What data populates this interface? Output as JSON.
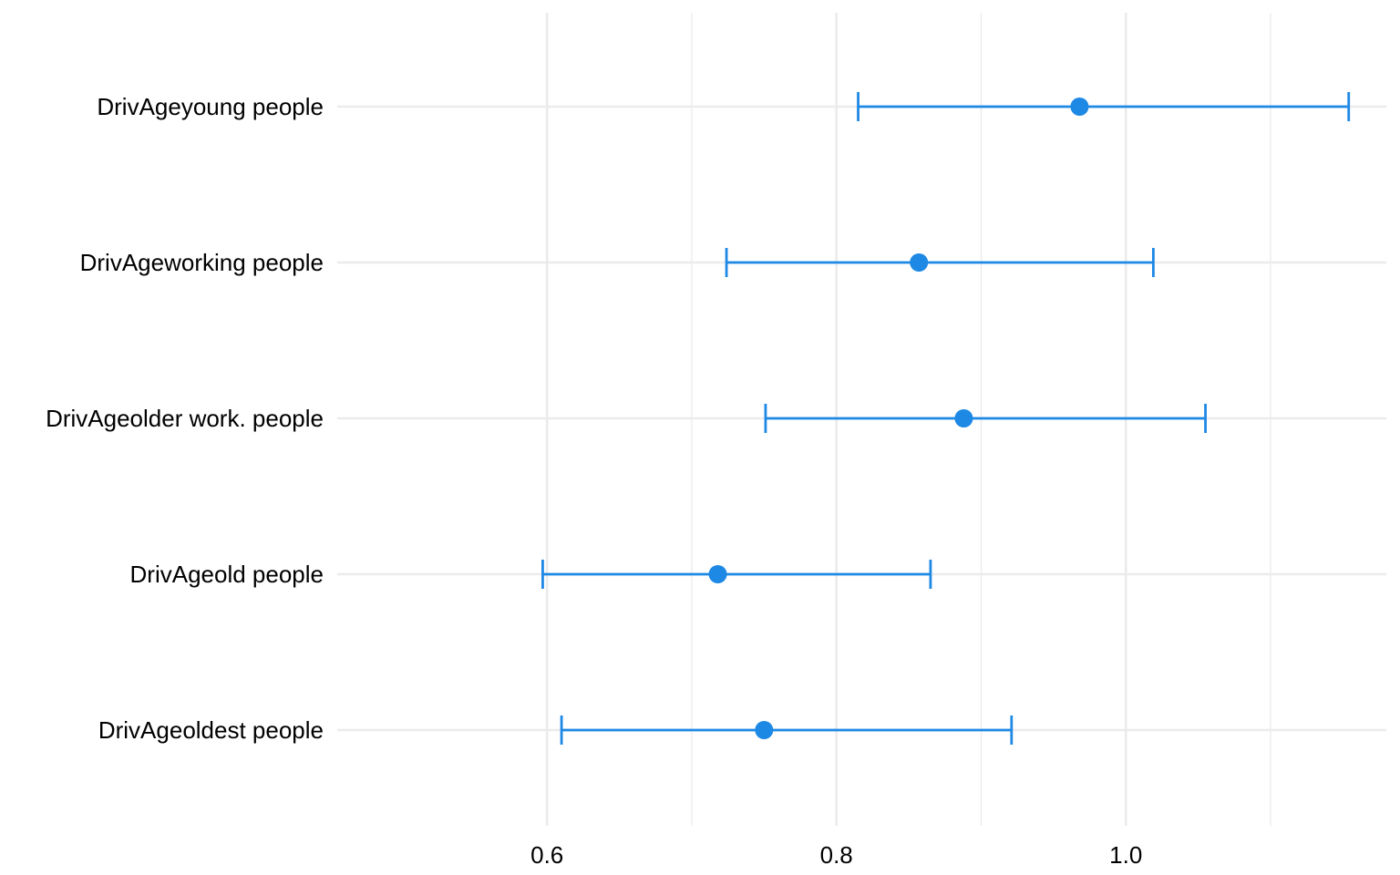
{
  "chart_data": {
    "type": "scatter",
    "subtype": "coefficient-plot",
    "title": "",
    "xlabel": "",
    "ylabel": "",
    "xlim": [
      0.455,
      1.18
    ],
    "x_major_ticks": [
      0.6,
      0.8,
      1.0
    ],
    "x_tick_labels": [
      "0.6",
      "0.8",
      "1.0"
    ],
    "x_minor_ticks": [
      0.7,
      0.9,
      1.1
    ],
    "grid": true,
    "legend": "none",
    "color": "#1e88e5",
    "categories": [
      "DrivAgeyoung people",
      "DrivAgeworking people",
      "DrivAgeolder work. people",
      "DrivAgeold people",
      "DrivAgeoldest people"
    ],
    "estimate": [
      0.968,
      0.857,
      0.888,
      0.718,
      0.75
    ],
    "ci_low": [
      0.815,
      0.724,
      0.751,
      0.597,
      0.61
    ],
    "ci_high": [
      1.154,
      1.019,
      1.055,
      0.865,
      0.921
    ]
  }
}
